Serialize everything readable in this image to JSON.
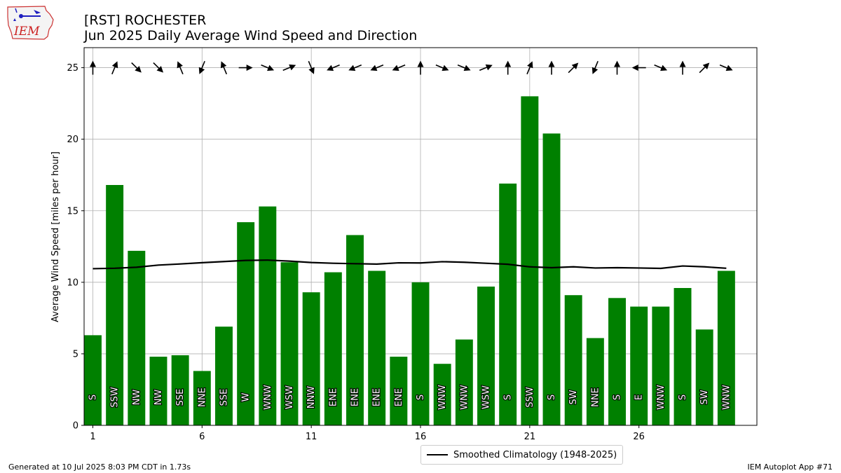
{
  "title_line1": "[RST] ROCHESTER",
  "title_line2": "Jun 2025 Daily Average Wind Speed and Direction",
  "footer_left": "Generated at 10 Jul 2025 8:03 PM CDT in 1.73s",
  "footer_right": "IEM Autoplot App #71",
  "logo_text": "IEM",
  "chart_data": {
    "type": "bar",
    "ylabel": "Average Wind Speed [miles per hour]",
    "ylim": [
      0,
      26.4
    ],
    "xlim": [
      0.6,
      31.4
    ],
    "yticks": [
      0,
      5,
      10,
      15,
      20,
      25
    ],
    "xticks": [
      1,
      6,
      11,
      16,
      21,
      26
    ],
    "grid": true,
    "bar_color": "#008000",
    "days": [
      1,
      2,
      3,
      4,
      5,
      6,
      7,
      8,
      9,
      10,
      11,
      12,
      13,
      14,
      15,
      16,
      17,
      18,
      19,
      20,
      21,
      22,
      23,
      24,
      25,
      26,
      27,
      28,
      29,
      30
    ],
    "values": [
      6.3,
      16.8,
      12.2,
      4.8,
      4.9,
      3.8,
      6.9,
      14.2,
      15.3,
      11.4,
      9.3,
      10.7,
      13.3,
      10.8,
      4.8,
      10.0,
      4.3,
      6.0,
      9.7,
      16.9,
      23.0,
      20.4,
      9.1,
      6.1,
      8.9,
      8.3,
      8.3,
      9.6,
      6.7,
      10.8
    ],
    "directions": [
      "S",
      "SSW",
      "NW",
      "NW",
      "SSE",
      "NNE",
      "SSE",
      "W",
      "WNW",
      "WSW",
      "NNW",
      "ENE",
      "ENE",
      "ENE",
      "ENE",
      "S",
      "WNW",
      "WNW",
      "WSW",
      "S",
      "SSW",
      "S",
      "SW",
      "NNE",
      "S",
      "E",
      "WNW",
      "S",
      "SW",
      "WNW"
    ],
    "climatology": {
      "name": "Smoothed Climatology (1948-2025)",
      "color": "#000000",
      "values": [
        10.95,
        10.98,
        11.05,
        11.2,
        11.28,
        11.37,
        11.45,
        11.53,
        11.55,
        11.48,
        11.38,
        11.33,
        11.3,
        11.27,
        11.36,
        11.35,
        11.44,
        11.4,
        11.33,
        11.26,
        11.08,
        11.02,
        11.08,
        11.0,
        11.02,
        11.0,
        10.97,
        11.14,
        11.08,
        10.98
      ]
    },
    "arrow_y": 25,
    "arrow_color": "#000000"
  }
}
